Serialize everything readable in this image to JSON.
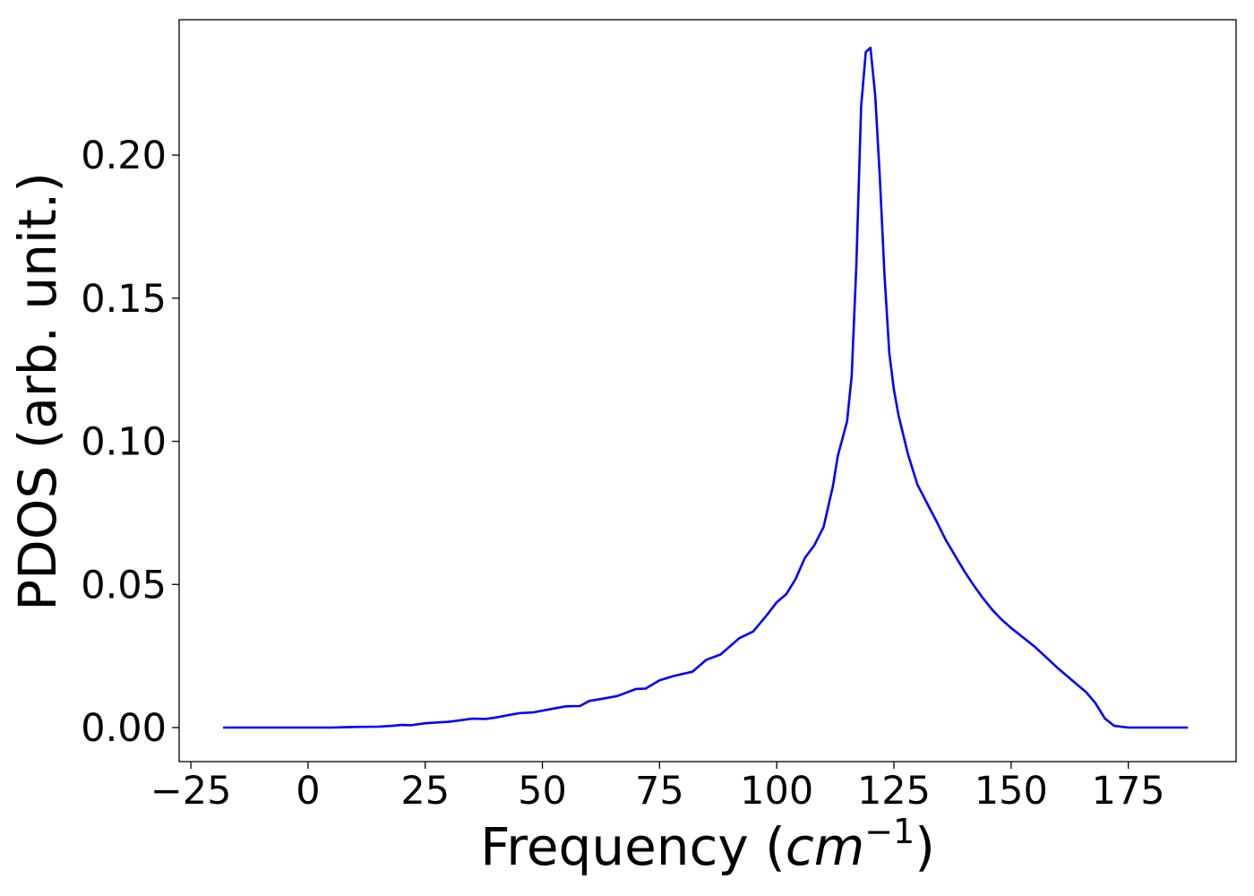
{
  "chart_data": {
    "type": "line",
    "title": "",
    "xlabel_text": "Frequency (",
    "xlabel_math": "cm",
    "xlabel_sup": "−1",
    "xlabel_close": ")",
    "ylabel": "PDOS (arb. unit.)",
    "xlim": [
      -27.5,
      198
    ],
    "ylim": [
      -0.0119,
      0.2473
    ],
    "xticks": [
      -25,
      0,
      25,
      50,
      75,
      100,
      125,
      150,
      175
    ],
    "xtick_labels": [
      "−25",
      "0",
      "25",
      "50",
      "75",
      "100",
      "125",
      "150",
      "175"
    ],
    "yticks": [
      0.0,
      0.05,
      0.1,
      0.15,
      0.2
    ],
    "ytick_labels": [
      "0.00",
      "0.05",
      "0.10",
      "0.15",
      "0.20"
    ],
    "grid": false,
    "series": [
      {
        "color": "#0000ff",
        "x": [
          -17.9,
          5,
          10,
          15,
          18,
          20,
          22,
          25,
          28,
          30,
          35,
          38,
          40,
          45,
          48,
          52,
          55,
          58,
          60,
          63,
          66,
          70,
          72,
          75,
          78,
          82,
          85,
          88,
          92,
          95,
          98,
          100,
          102,
          104,
          106,
          108,
          110,
          112,
          113,
          115,
          116,
          117,
          118,
          119,
          120,
          121,
          122,
          123,
          124,
          125,
          126,
          128,
          130,
          132,
          134,
          136,
          138,
          140,
          142,
          144,
          146,
          148,
          150,
          155,
          160,
          163,
          166,
          168,
          170,
          172,
          175,
          180,
          187.5
        ],
        "values": [
          0.0,
          0.0,
          0.0002,
          0.0003,
          0.0006,
          0.0009,
          0.0008,
          0.0015,
          0.0018,
          0.002,
          0.0031,
          0.003,
          0.0035,
          0.005,
          0.0053,
          0.0065,
          0.0074,
          0.0075,
          0.0093,
          0.0101,
          0.011,
          0.0135,
          0.0136,
          0.0165,
          0.018,
          0.0195,
          0.0237,
          0.0255,
          0.0312,
          0.0336,
          0.0395,
          0.0438,
          0.0465,
          0.0518,
          0.0593,
          0.0636,
          0.0701,
          0.0845,
          0.0947,
          0.107,
          0.123,
          0.162,
          0.217,
          0.236,
          0.2375,
          0.221,
          0.192,
          0.158,
          0.131,
          0.118,
          0.109,
          0.0955,
          0.0849,
          0.0786,
          0.0723,
          0.0657,
          0.0602,
          0.0547,
          0.0497,
          0.0452,
          0.0411,
          0.0377,
          0.0348,
          0.0283,
          0.0207,
          0.0165,
          0.0124,
          0.0085,
          0.0032,
          0.0006,
          0.0,
          0.0,
          0.0
        ]
      }
    ]
  }
}
